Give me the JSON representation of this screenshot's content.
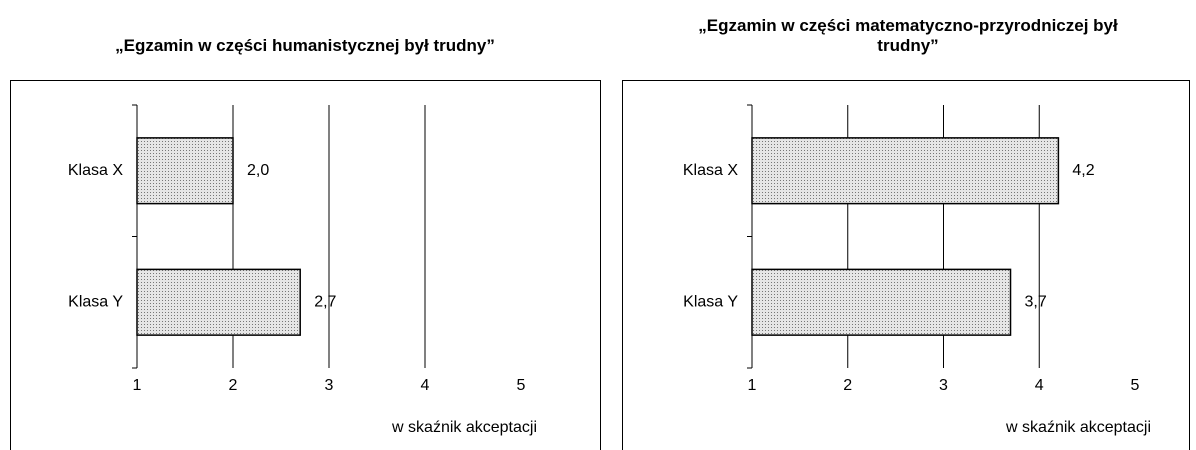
{
  "chart_data": [
    {
      "type": "barh",
      "title": "„Egzamin w części humanistycznej był trudny”",
      "categories": [
        "Klasa X",
        "Klasa Y"
      ],
      "values": [
        2.0,
        2.7
      ],
      "value_labels": [
        "2,0",
        "2,7"
      ],
      "xlabel": "w skaźnik akceptacji",
      "xlim": [
        1,
        5
      ],
      "xticks": [
        1,
        2,
        3,
        4,
        5
      ],
      "grid": true,
      "color": "#d4d4d4"
    },
    {
      "type": "barh",
      "title": "„Egzamin w części matematyczno-przyrodniczej był trudny”",
      "categories": [
        "Klasa X",
        "Klasa Y"
      ],
      "values": [
        4.2,
        3.7
      ],
      "value_labels": [
        "4,2",
        "3,7"
      ],
      "xlabel": "w skaźnik akceptacji",
      "xlim": [
        1,
        5
      ],
      "xticks": [
        1,
        2,
        3,
        4,
        5
      ],
      "grid": true,
      "color": "#d4d4d4"
    }
  ]
}
